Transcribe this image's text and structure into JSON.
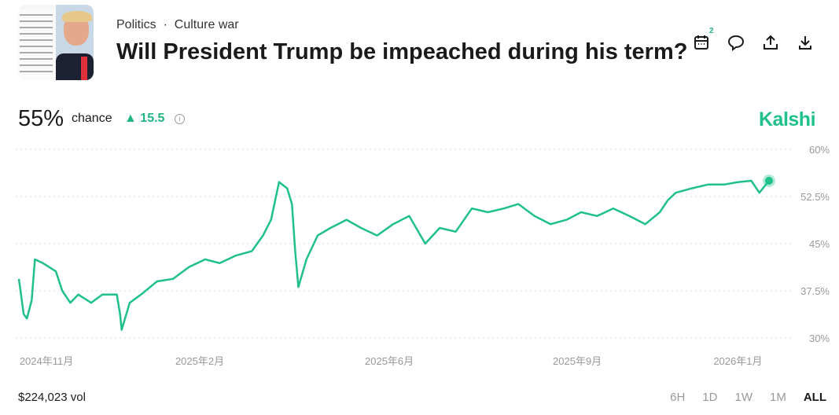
{
  "header": {
    "category": "Politics",
    "subcategory": "Culture war",
    "separator": "·",
    "title": "Will President Trump be impeached during his term?",
    "calendar_badge": "2",
    "icons": [
      "calendar-icon",
      "comment-icon",
      "share-icon",
      "download-icon"
    ]
  },
  "summary": {
    "value": "55%",
    "chance_label": "chance",
    "delta": "15.5",
    "delta_direction": "up",
    "brand": "Kalshi"
  },
  "footer": {
    "volume": "$224,023 vol",
    "ranges": [
      "6H",
      "1D",
      "1W",
      "1M",
      "ALL"
    ],
    "active_range": "ALL"
  },
  "colors": {
    "accent": "#1fc08a",
    "grid": "#dddddd"
  },
  "chart_data": {
    "type": "line",
    "grid": true,
    "y_axis_side": "right",
    "ylim": [
      30,
      60
    ],
    "yticks": [
      60,
      52.5,
      45,
      37.5,
      30
    ],
    "ytick_labels": [
      "60%",
      "52.5%",
      "45%",
      "37.5%",
      "30%"
    ],
    "xlim": [
      "2024-10-10",
      "2026-01-20"
    ],
    "xticks": [
      {
        "date": "2024-10-29",
        "label": "2024年11月"
      },
      {
        "date": "2025-02-03",
        "label": "2025年2月"
      },
      {
        "date": "2025-06-01",
        "label": "2025年6月"
      },
      {
        "date": "2025-09-26",
        "label": "2025年9月"
      },
      {
        "date": "2026-01-04",
        "label": "2026年1月"
      }
    ],
    "series": [
      {
        "points": [
          [
            "2024-10-10",
            39.4
          ],
          [
            "2024-10-13",
            33.8
          ],
          [
            "2024-10-15",
            33.1
          ],
          [
            "2024-10-18",
            36
          ],
          [
            "2024-10-20",
            42.5
          ],
          [
            "2024-10-25",
            41.9
          ],
          [
            "2024-11-02",
            40.6
          ],
          [
            "2024-11-06",
            37.5
          ],
          [
            "2024-11-11",
            35.6
          ],
          [
            "2024-11-16",
            36.9
          ],
          [
            "2024-11-24",
            35.6
          ],
          [
            "2024-12-01",
            36.9
          ],
          [
            "2024-12-10",
            36.9
          ],
          [
            "2024-12-12",
            33.8
          ],
          [
            "2024-12-13",
            31.3
          ],
          [
            "2024-12-18",
            35.6
          ],
          [
            "2024-12-25",
            36.9
          ],
          [
            "2025-01-04",
            39
          ],
          [
            "2025-01-14",
            39.4
          ],
          [
            "2025-01-24",
            41.3
          ],
          [
            "2025-02-03",
            42.5
          ],
          [
            "2025-02-12",
            41.9
          ],
          [
            "2025-02-22",
            43.1
          ],
          [
            "2025-03-04",
            43.8
          ],
          [
            "2025-03-11",
            46.3
          ],
          [
            "2025-03-16",
            48.8
          ],
          [
            "2025-03-21",
            54.8
          ],
          [
            "2025-03-26",
            53.8
          ],
          [
            "2025-03-29",
            51.3
          ],
          [
            "2025-03-31",
            43.8
          ],
          [
            "2025-04-02",
            38.1
          ],
          [
            "2025-04-07",
            42.5
          ],
          [
            "2025-04-14",
            46.3
          ],
          [
            "2025-04-22",
            47.5
          ],
          [
            "2025-05-02",
            48.8
          ],
          [
            "2025-05-11",
            47.5
          ],
          [
            "2025-05-21",
            46.3
          ],
          [
            "2025-05-31",
            48.1
          ],
          [
            "2025-06-10",
            49.4
          ],
          [
            "2025-06-20",
            45
          ],
          [
            "2025-06-29",
            47.5
          ],
          [
            "2025-07-09",
            46.9
          ],
          [
            "2025-07-19",
            50.6
          ],
          [
            "2025-07-29",
            50
          ],
          [
            "2025-08-08",
            50.6
          ],
          [
            "2025-08-17",
            51.3
          ],
          [
            "2025-08-27",
            49.4
          ],
          [
            "2025-09-06",
            48.1
          ],
          [
            "2025-09-16",
            48.8
          ],
          [
            "2025-09-25",
            50
          ],
          [
            "2025-10-05",
            49.4
          ],
          [
            "2025-10-15",
            50.6
          ],
          [
            "2025-10-25",
            49.4
          ],
          [
            "2025-11-04",
            48.1
          ],
          [
            "2025-11-13",
            50
          ],
          [
            "2025-11-18",
            51.9
          ],
          [
            "2025-11-23",
            53.1
          ],
          [
            "2025-12-03",
            53.8
          ],
          [
            "2025-12-13",
            54.4
          ],
          [
            "2025-12-23",
            54.4
          ],
          [
            "2026-01-01",
            54.8
          ],
          [
            "2026-01-09",
            55
          ],
          [
            "2026-01-14",
            53.1
          ],
          [
            "2026-01-20",
            55
          ]
        ]
      }
    ]
  }
}
